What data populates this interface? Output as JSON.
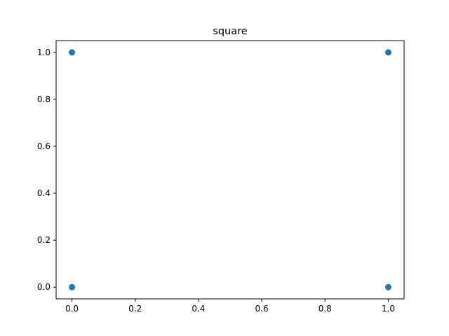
{
  "chart_data": {
    "type": "scatter",
    "title": "square",
    "xlabel": "",
    "ylabel": "",
    "xlim": [
      -0.05,
      1.05
    ],
    "ylim": [
      -0.05,
      1.05
    ],
    "x_ticks": [
      "0.0",
      "0.2",
      "0.4",
      "0.6",
      "0.8",
      "1.0"
    ],
    "y_ticks": [
      "0.0",
      "0.2",
      "0.4",
      "0.6",
      "0.8",
      "1.0"
    ],
    "grid": false,
    "series": [
      {
        "color": "#1f77b4",
        "points": [
          {
            "x": 0,
            "y": 0
          },
          {
            "x": 1,
            "y": 0
          },
          {
            "x": 1,
            "y": 1
          },
          {
            "x": 0,
            "y": 1
          }
        ]
      }
    ]
  }
}
